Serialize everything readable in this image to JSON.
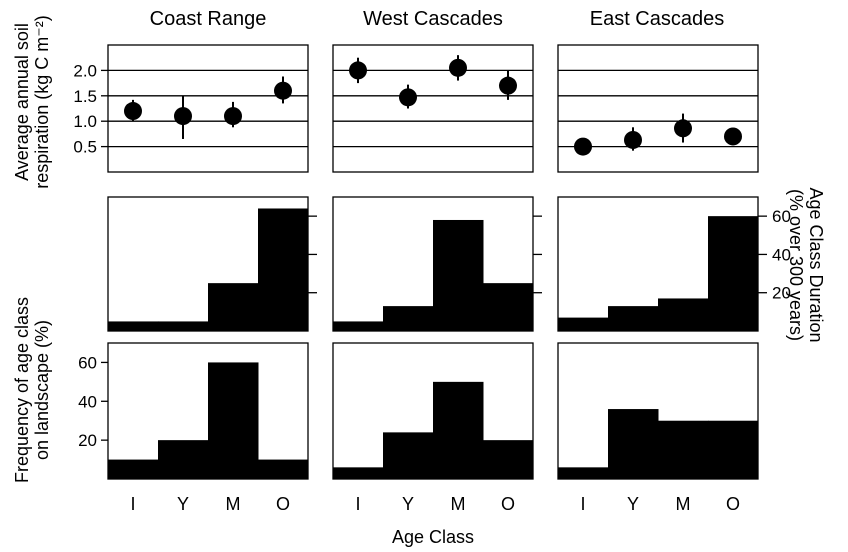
{
  "chart_data": {
    "type": "multi-panel",
    "columns": [
      "Coast Range",
      "West Cascades",
      "East Cascades"
    ],
    "categories": [
      "I",
      "Y",
      "M",
      "O"
    ],
    "xlabel": "Age Class",
    "rows": [
      {
        "type": "scatter",
        "ylabel_lines": [
          "Average annual soil",
          "respiration (kg C m⁻²)"
        ],
        "ylim": [
          0,
          2.5
        ],
        "yticks": [
          "0.5",
          "1.0",
          "1.5",
          "2.0"
        ],
        "yticks_values": [
          0.5,
          1.0,
          1.5,
          2.0
        ],
        "grid": true,
        "series": [
          {
            "panel": "Coast Range",
            "values": [
              1.2,
              1.1,
              1.1,
              1.6
            ],
            "err_low": [
              1.0,
              0.65,
              0.88,
              1.35
            ],
            "err_high": [
              1.42,
              1.5,
              1.38,
              1.88
            ]
          },
          {
            "panel": "West Cascades",
            "values": [
              2.0,
              1.47,
              2.05,
              1.7
            ],
            "err_low": [
              1.75,
              1.25,
              1.8,
              1.42
            ],
            "err_high": [
              2.25,
              1.72,
              2.3,
              2.0
            ]
          },
          {
            "panel": "East Cascades",
            "values": [
              0.5,
              0.63,
              0.86,
              0.7
            ],
            "err_low": [
              0.4,
              0.42,
              0.58,
              0.6
            ],
            "err_high": [
              0.55,
              0.88,
              1.15,
              0.8
            ]
          }
        ]
      },
      {
        "type": "bar",
        "ylabel_lines": [
          "Age Class Duration",
          "(% over 300 years)"
        ],
        "y_axis_side": "right",
        "ylim": [
          0,
          70
        ],
        "yticks": [
          "20",
          "40",
          "60"
        ],
        "yticks_values": [
          20,
          40,
          60
        ],
        "series": [
          {
            "panel": "Coast Range",
            "values": [
              5,
              5,
              25,
              64
            ]
          },
          {
            "panel": "West Cascades",
            "values": [
              5,
              13,
              58,
              25
            ]
          },
          {
            "panel": "East Cascades",
            "values": [
              7,
              13,
              17,
              60
            ]
          }
        ]
      },
      {
        "type": "bar",
        "ylabel_lines": [
          "Frequency of age class",
          "on landscape (%)"
        ],
        "y_axis_side": "left",
        "ylim": [
          0,
          70
        ],
        "yticks": [
          "20",
          "40",
          "60"
        ],
        "yticks_values": [
          20,
          40,
          60
        ],
        "series": [
          {
            "panel": "Coast Range",
            "values": [
              10,
              20,
              60,
              10
            ]
          },
          {
            "panel": "West Cascades",
            "values": [
              6,
              24,
              50,
              20
            ]
          },
          {
            "panel": "East Cascades",
            "values": [
              6,
              36,
              30,
              30
            ]
          }
        ]
      }
    ]
  }
}
